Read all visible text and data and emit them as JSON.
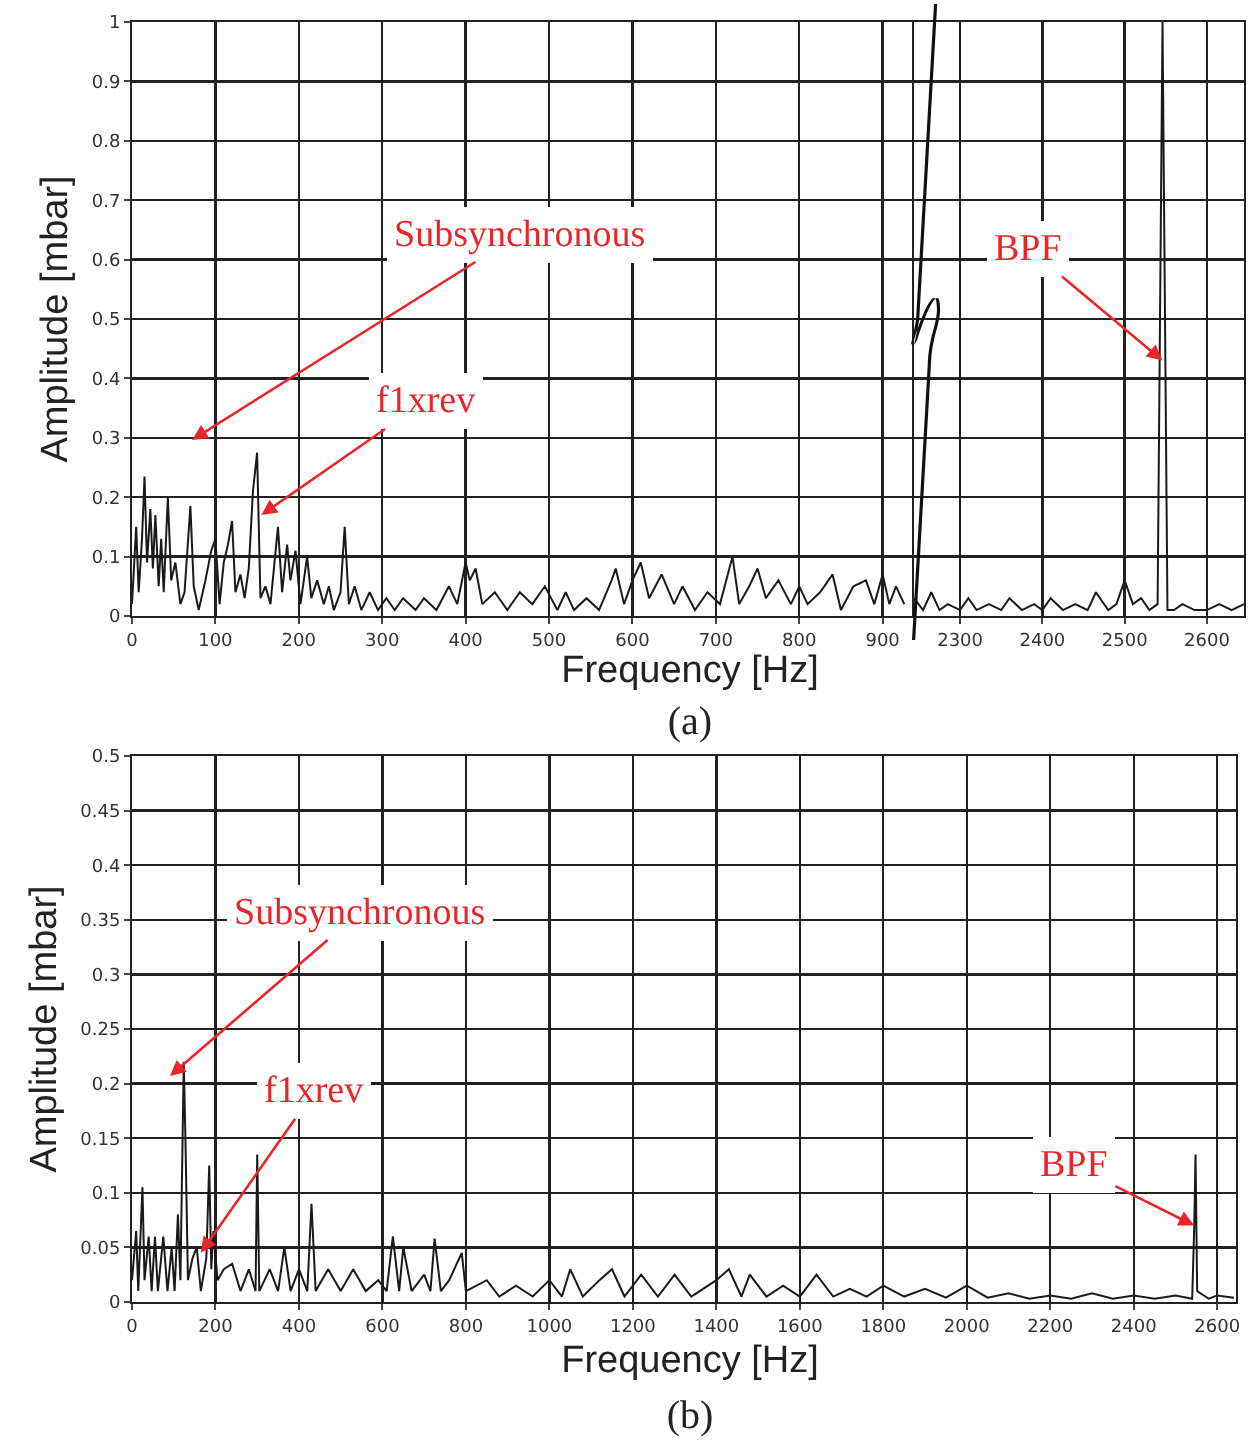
{
  "chart_data": [
    {
      "type": "line",
      "ylabel": "Amplitude [mbar]",
      "xlabel": "Frequency [Hz]",
      "xlim": [
        0,
        940
      ],
      "xticks": [
        0,
        100,
        200,
        300,
        400,
        500,
        600,
        700,
        800,
        900
      ],
      "ylim": [
        0,
        1
      ],
      "yticks": [
        0,
        0.1,
        0.2,
        0.3,
        0.4,
        0.5,
        0.6,
        0.7,
        0.8,
        0.9,
        1
      ],
      "grid": true,
      "marker": "none",
      "line_style": "solid",
      "series": [
        {
          "color": "#1a1a1a",
          "x": [
            0,
            5,
            8,
            12,
            15,
            18,
            22,
            25,
            28,
            32,
            35,
            38,
            43,
            47,
            52,
            58,
            63,
            70,
            74,
            80,
            88,
            95,
            100,
            105,
            110,
            115,
            120,
            124,
            130,
            135,
            140,
            145,
            150,
            154,
            160,
            166,
            175,
            180,
            186,
            190,
            196,
            202,
            210,
            215,
            222,
            230,
            236,
            242,
            250,
            255,
            260,
            267,
            275,
            285,
            295,
            305,
            315,
            325,
            340,
            350,
            365,
            380,
            390,
            400,
            405,
            412,
            420,
            435,
            450,
            465,
            480,
            495,
            510,
            520,
            530,
            545,
            560,
            575,
            580,
            590,
            600,
            610,
            620,
            635,
            650,
            660,
            675,
            690,
            705,
            720,
            728,
            740,
            750,
            760,
            775,
            790,
            800,
            810,
            825,
            840,
            850,
            865,
            880,
            890,
            900,
            908,
            916,
            926
          ],
          "values": [
            0.02,
            0.15,
            0.04,
            0.13,
            0.235,
            0.09,
            0.18,
            0.08,
            0.17,
            0.05,
            0.13,
            0.04,
            0.2,
            0.06,
            0.09,
            0.02,
            0.04,
            0.185,
            0.05,
            0.01,
            0.06,
            0.11,
            0.13,
            0.02,
            0.09,
            0.12,
            0.16,
            0.04,
            0.07,
            0.03,
            0.08,
            0.21,
            0.275,
            0.03,
            0.05,
            0.02,
            0.15,
            0.04,
            0.12,
            0.06,
            0.11,
            0.02,
            0.1,
            0.03,
            0.06,
            0.02,
            0.05,
            0.01,
            0.04,
            0.15,
            0.02,
            0.05,
            0.01,
            0.04,
            0.01,
            0.03,
            0.01,
            0.03,
            0.01,
            0.03,
            0.01,
            0.05,
            0.02,
            0.09,
            0.06,
            0.08,
            0.02,
            0.04,
            0.01,
            0.04,
            0.02,
            0.05,
            0.01,
            0.04,
            0.01,
            0.03,
            0.01,
            0.06,
            0.08,
            0.02,
            0.06,
            0.09,
            0.03,
            0.07,
            0.02,
            0.05,
            0.01,
            0.04,
            0.02,
            0.1,
            0.02,
            0.05,
            0.08,
            0.03,
            0.06,
            0.02,
            0.05,
            0.02,
            0.04,
            0.07,
            0.01,
            0.05,
            0.06,
            0.02,
            0.07,
            0.02,
            0.05,
            0.02
          ]
        }
      ],
      "annotations": [
        "Subsynchronous",
        {
          "text": "f1xrev",
          "x": 155,
          "y": 0.17
        },
        "(a)"
      ]
    },
    {
      "type": "line",
      "xlim": [
        2244,
        2645
      ],
      "xticks": [
        2300,
        2400,
        2500,
        2600
      ],
      "ylim": [
        0,
        1
      ],
      "yticks": [
        0,
        0.1,
        0.2,
        0.3,
        0.4,
        0.5,
        0.6,
        0.7,
        0.8,
        0.9,
        1
      ],
      "grid": true,
      "marker": "none",
      "line_style": "solid",
      "tick_labels": "x",
      "series": [
        {
          "color": "#1a1a1a",
          "x": [
            2244,
            2255,
            2265,
            2275,
            2285,
            2300,
            2310,
            2320,
            2335,
            2350,
            2360,
            2375,
            2390,
            2400,
            2410,
            2425,
            2440,
            2455,
            2465,
            2480,
            2490,
            2500,
            2510,
            2520,
            2530,
            2540,
            2546,
            2552,
            2560,
            2570,
            2585,
            2600,
            2615,
            2630,
            2645
          ],
          "values": [
            0.03,
            0.01,
            0.04,
            0.01,
            0.02,
            0.01,
            0.03,
            0.01,
            0.02,
            0.01,
            0.03,
            0.01,
            0.02,
            0.01,
            0.03,
            0.01,
            0.02,
            0.01,
            0.04,
            0.01,
            0.02,
            0.06,
            0.02,
            0.03,
            0.01,
            0.02,
            1,
            0.01,
            0.01,
            0.02,
            0.01,
            0.01,
            0.02,
            0.01,
            0.02
          ]
        }
      ],
      "annotations": [
        {
          "text": "BPF",
          "x": 2546,
          "y": 0.43
        }
      ]
    },
    {
      "type": "line",
      "ylabel": "Amplitude [mbar]",
      "xlabel": "Frequency [Hz]",
      "xlim": [
        0,
        2645
      ],
      "xticks": [
        0,
        200,
        400,
        600,
        800,
        1000,
        1200,
        1400,
        1600,
        1800,
        2000,
        2200,
        2400,
        2600
      ],
      "ylim": [
        0,
        0.5
      ],
      "yticks": [
        0,
        0.05,
        0.1,
        0.15,
        0.2,
        0.25,
        0.3,
        0.35,
        0.4,
        0.45,
        0.5
      ],
      "grid": true,
      "marker": "none",
      "line_style": "solid",
      "series": [
        {
          "color": "#1a1a1a",
          "x": [
            0,
            10,
            15,
            25,
            30,
            40,
            47,
            55,
            62,
            75,
            85,
            95,
            102,
            110,
            116,
            124,
            128,
            134,
            145,
            155,
            165,
            178,
            185,
            190,
            195,
            205,
            220,
            240,
            260,
            280,
            296,
            300,
            305,
            330,
            350,
            365,
            380,
            400,
            420,
            430,
            440,
            470,
            500,
            530,
            560,
            590,
            610,
            625,
            640,
            650,
            670,
            700,
            715,
            725,
            740,
            760,
            790,
            800,
            850,
            880,
            920,
            960,
            1000,
            1030,
            1050,
            1080,
            1120,
            1150,
            1180,
            1220,
            1260,
            1300,
            1340,
            1400,
            1430,
            1460,
            1480,
            1520,
            1560,
            1600,
            1640,
            1680,
            1720,
            1760,
            1800,
            1850,
            1900,
            1950,
            2000,
            2050,
            2100,
            2150,
            2200,
            2250,
            2300,
            2350,
            2400,
            2450,
            2500,
            2540,
            2545,
            2548,
            2552,
            2580,
            2600,
            2640
          ],
          "values": [
            0.02,
            0.065,
            0.01,
            0.105,
            0.02,
            0.06,
            0.01,
            0.06,
            0.01,
            0.06,
            0.01,
            0.05,
            0.01,
            0.08,
            0.02,
            0.22,
            0.15,
            0.02,
            0.04,
            0.05,
            0.01,
            0.04,
            0.125,
            0.03,
            0.065,
            0.02,
            0.03,
            0.035,
            0.01,
            0.03,
            0.01,
            0.135,
            0.01,
            0.03,
            0.01,
            0.05,
            0.01,
            0.03,
            0.01,
            0.09,
            0.01,
            0.03,
            0.01,
            0.03,
            0.01,
            0.02,
            0.01,
            0.06,
            0.01,
            0.05,
            0.01,
            0.025,
            0.01,
            0.058,
            0.01,
            0.02,
            0.045,
            0.01,
            0.02,
            0.005,
            0.015,
            0.005,
            0.02,
            0.005,
            0.03,
            0.005,
            0.02,
            0.03,
            0.005,
            0.025,
            0.005,
            0.025,
            0.005,
            0.02,
            0.03,
            0.005,
            0.025,
            0.005,
            0.015,
            0.005,
            0.025,
            0.005,
            0.012,
            0.005,
            0.015,
            0.005,
            0.012,
            0.004,
            0.015,
            0.004,
            0.008,
            0.003,
            0.006,
            0.003,
            0.008,
            0.003,
            0.006,
            0.003,
            0.006,
            0.003,
            0.07,
            0.135,
            0.01,
            0.003,
            0.006,
            0.004
          ]
        }
      ],
      "annotations": [
        "Subsynchronous",
        {
          "text": "f1xrev",
          "x": 165,
          "y": 0.045
        },
        {
          "text": "BPF",
          "x": 2545,
          "y": 0.07
        },
        "(b)"
      ]
    }
  ]
}
